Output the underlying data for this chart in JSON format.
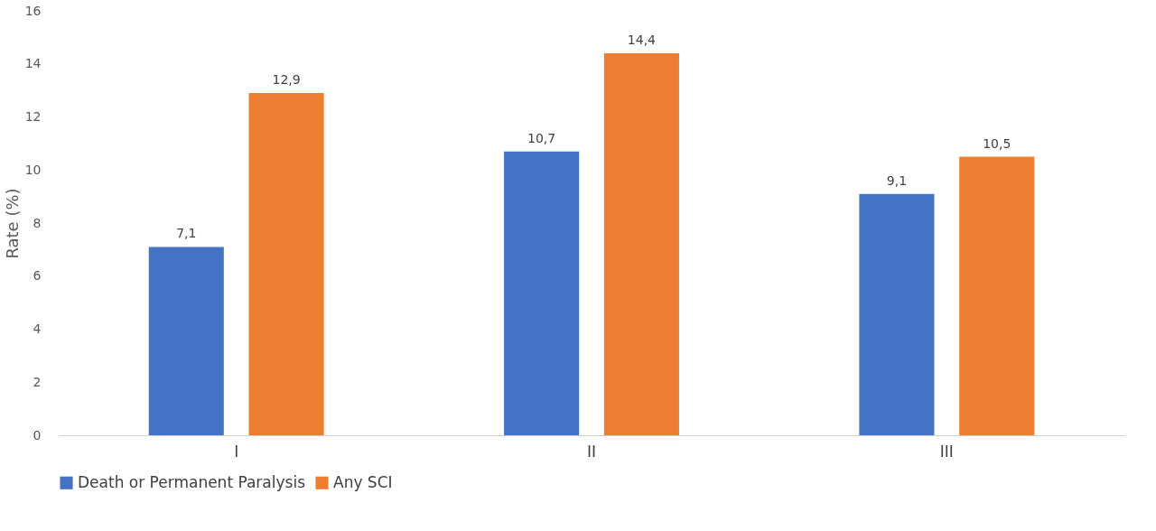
{
  "chart_data": {
    "type": "bar",
    "ylabel": "Rate (%)",
    "categories": [
      "I",
      "II",
      "III"
    ],
    "series": [
      {
        "name": "Death or Permanent Paralysis",
        "color": "#4472c4",
        "values": [
          7.1,
          10.7,
          9.1
        ],
        "value_labels": [
          "7,1",
          "10,7",
          "9,1"
        ]
      },
      {
        "name": "Any SCI",
        "color": "#ed7d31",
        "values": [
          12.9,
          14.4,
          10.5
        ],
        "value_labels": [
          "12,9",
          "14,4",
          "10,5"
        ]
      }
    ],
    "ylim": [
      0,
      16
    ],
    "yticks": [
      0,
      2,
      4,
      6,
      8,
      10,
      12,
      14,
      16
    ],
    "grid": false,
    "legend": "bottom"
  }
}
